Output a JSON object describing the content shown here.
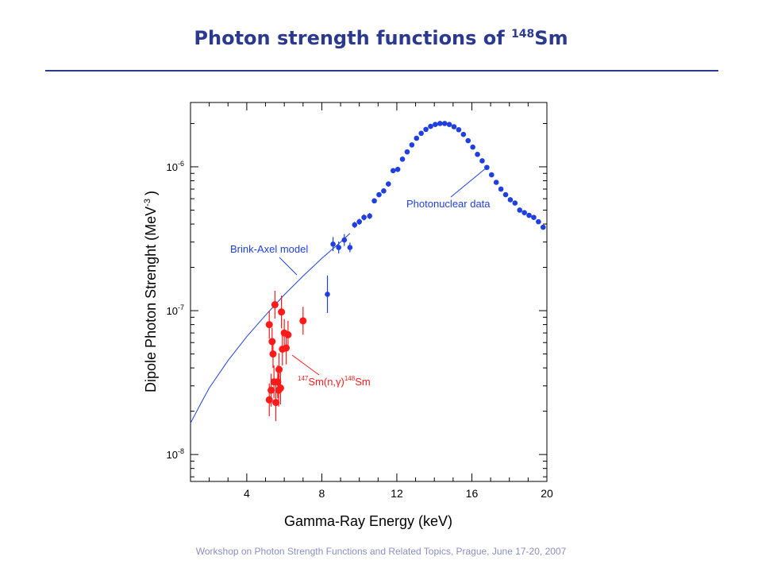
{
  "slide": {
    "title_main": "Photon strength functions of ",
    "title_sup": "148",
    "title_end": "Sm",
    "footer": "Workshop on Photon Strength Functions and Related Topics, Prague, June 17-20, 2007"
  },
  "colors": {
    "title": "#2b3a8f",
    "photonuclear": "#1f3fe0",
    "capture": "#ff1a1a",
    "model_line": "#1f3fe0"
  },
  "chart_data": {
    "type": "scatter",
    "xlabel": "Gamma-Ray Energy (keV)",
    "ylabel_main": "Dipole Photon Strenght (MeV",
    "ylabel_sup": "-3",
    "ylabel_end": ")",
    "xlim": [
      1,
      20
    ],
    "ylim": [
      6.5e-09,
      2.8e-06
    ],
    "yscale": "log",
    "x_ticks": [
      4,
      8,
      12,
      16,
      20
    ],
    "y_ticks": [
      {
        "value": 1e-08,
        "label_base": "10",
        "label_exp": "-8"
      },
      {
        "value": 1e-07,
        "label_base": "10",
        "label_exp": "-7"
      },
      {
        "value": 1e-06,
        "label_base": "10",
        "label_exp": "-6"
      }
    ],
    "annotations": [
      {
        "text": "Brink-Axel model",
        "series": "model"
      },
      {
        "text": "Photonuclear data",
        "series": "photonuclear"
      },
      {
        "text_sup1": "147",
        "text_mid": "Sm(n,γ)",
        "text_sup2": "148",
        "text_end": "Sm",
        "series": "capture"
      }
    ],
    "series": [
      {
        "id": "model",
        "kind": "line",
        "points": [
          [
            1.0,
            1.65e-08
          ],
          [
            1.5,
            2.2e-08
          ],
          [
            2.0,
            2.9e-08
          ],
          [
            3.0,
            4.5e-08
          ],
          [
            4.0,
            6.6e-08
          ],
          [
            5.0,
            9.3e-08
          ],
          [
            6.0,
            1.29e-07
          ],
          [
            7.0,
            1.74e-07
          ],
          [
            8.0,
            2.31e-07
          ],
          [
            9.0,
            3e-07
          ],
          [
            9.5,
            3.45e-07
          ]
        ]
      },
      {
        "id": "photonuclear",
        "kind": "points",
        "points": [
          [
            8.3,
            1.3e-07,
            0.35
          ],
          [
            8.6,
            2.9e-07,
            0.12
          ],
          [
            8.9,
            2.75e-07,
            0.1
          ],
          [
            9.2,
            3.1e-07,
            0.1
          ],
          [
            9.5,
            2.75e-07,
            0.08
          ],
          [
            9.75,
            3.95e-07,
            0.05
          ],
          [
            10.0,
            4.15e-07,
            0.05
          ],
          [
            10.25,
            4.45e-07,
            0.05
          ],
          [
            10.55,
            4.55e-07,
            0.05
          ],
          [
            10.8,
            5.8e-07,
            0.04
          ],
          [
            11.05,
            6.4e-07,
            0.04
          ],
          [
            11.3,
            6.8e-07,
            0.04
          ],
          [
            11.55,
            7.6e-07,
            0.04
          ],
          [
            11.8,
            9.4e-07,
            0.04
          ],
          [
            12.05,
            9.6e-07,
            0.04
          ],
          [
            12.3,
            1.13e-06,
            0.03
          ],
          [
            12.55,
            1.27e-06,
            0.03
          ],
          [
            12.8,
            1.42e-06,
            0.03
          ],
          [
            13.05,
            1.58e-06,
            0.03
          ],
          [
            13.3,
            1.71e-06,
            0.03
          ],
          [
            13.55,
            1.82e-06,
            0.03
          ],
          [
            13.8,
            1.91e-06,
            0.03
          ],
          [
            14.05,
            1.97e-06,
            0.03
          ],
          [
            14.3,
            2e-06,
            0.03
          ],
          [
            14.55,
            2e-06,
            0.03
          ],
          [
            14.8,
            1.97e-06,
            0.03
          ],
          [
            15.05,
            1.9e-06,
            0.03
          ],
          [
            15.3,
            1.81e-06,
            0.03
          ],
          [
            15.55,
            1.68e-06,
            0.03
          ],
          [
            15.8,
            1.52e-06,
            0.03
          ],
          [
            16.05,
            1.37e-06,
            0.03
          ],
          [
            16.3,
            1.22e-06,
            0.03
          ],
          [
            16.55,
            1.1e-06,
            0.03
          ],
          [
            16.8,
            9.9e-07,
            0.03
          ],
          [
            17.05,
            8.8e-07,
            0.03
          ],
          [
            17.3,
            7.8e-07,
            0.03
          ],
          [
            17.55,
            7e-07,
            0.03
          ],
          [
            17.8,
            6.4e-07,
            0.03
          ],
          [
            18.05,
            5.9e-07,
            0.03
          ],
          [
            18.3,
            5.6e-07,
            0.03
          ],
          [
            18.55,
            5e-07,
            0.03
          ],
          [
            18.8,
            4.8e-07,
            0.03
          ],
          [
            19.05,
            4.6e-07,
            0.03
          ],
          [
            19.3,
            4.45e-07,
            0.03
          ],
          [
            19.55,
            4.15e-07,
            0.03
          ],
          [
            19.8,
            3.8e-07,
            0.03
          ]
        ]
      },
      {
        "id": "capture",
        "kind": "points",
        "points": [
          [
            5.2,
            8e-08,
            0.25
          ],
          [
            5.2,
            2.4e-08,
            0.3
          ],
          [
            5.3,
            2.8e-08,
            0.3
          ],
          [
            5.35,
            6.1e-08,
            0.25
          ],
          [
            5.4,
            5e-08,
            0.25
          ],
          [
            5.45,
            3.2e-08,
            0.3
          ],
          [
            5.5,
            1.1e-07,
            0.25
          ],
          [
            5.55,
            2.3e-08,
            0.35
          ],
          [
            5.65,
            3.2e-08,
            0.3
          ],
          [
            5.7,
            2.8e-08,
            0.3
          ],
          [
            5.72,
            3.9e-08,
            0.3
          ],
          [
            5.8,
            2.9e-08,
            0.3
          ],
          [
            5.85,
            9.8e-08,
            0.3
          ],
          [
            5.9,
            5.4e-08,
            0.3
          ],
          [
            6.0,
            7e-08,
            0.25
          ],
          [
            6.1,
            5.5e-08,
            0.3
          ],
          [
            6.2,
            6.8e-08,
            0.25
          ],
          [
            7.0,
            8.5e-08,
            0.25
          ]
        ]
      }
    ]
  }
}
